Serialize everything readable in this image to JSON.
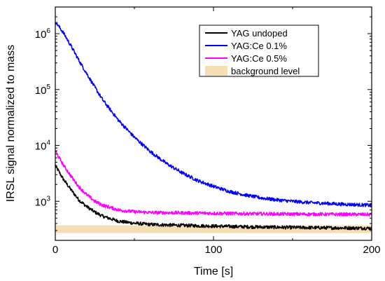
{
  "chart_data": {
    "type": "line",
    "xlabel": "Time [s]",
    "ylabel": "IRSL signal normalized to mass",
    "xlim": [
      0,
      200
    ],
    "ylim": [
      200,
      3000000
    ],
    "y_scale": "log",
    "grid": false,
    "legend_position": "top-right",
    "x_ticks": [
      {
        "value": 0,
        "label": "0"
      },
      {
        "value": 100,
        "label": "100"
      },
      {
        "value": 200,
        "label": "200"
      }
    ],
    "y_ticks": [
      {
        "value": 1000,
        "base": "10",
        "exp": "3"
      },
      {
        "value": 10000,
        "base": "10",
        "exp": "4"
      },
      {
        "value": 100000,
        "base": "10",
        "exp": "5"
      },
      {
        "value": 1000000,
        "base": "10",
        "exp": "6"
      }
    ],
    "series": [
      {
        "name": "YAG undoped",
        "color": "#000000",
        "x": [
          0,
          5,
          10,
          15,
          20,
          25,
          30,
          40,
          50,
          60,
          80,
          100,
          120,
          150,
          200
        ],
        "values": [
          4400,
          2500,
          1600,
          1050,
          800,
          640,
          540,
          440,
          405,
          385,
          370,
          360,
          350,
          340,
          330
        ]
      },
      {
        "name": "YAG:Ce 0.1%",
        "color": "#0000ff",
        "x": [
          0,
          5,
          10,
          15,
          20,
          25,
          30,
          40,
          50,
          60,
          70,
          80,
          90,
          100,
          110,
          120,
          130,
          140,
          150,
          160,
          170,
          180,
          190,
          200
        ],
        "values": [
          1650000,
          1050000,
          600000,
          330000,
          190000,
          110000,
          65000,
          28000,
          14000,
          7800,
          4800,
          3250,
          2350,
          1850,
          1500,
          1300,
          1150,
          1060,
          1000,
          950,
          920,
          890,
          870,
          850
        ]
      },
      {
        "name": "YAG:Ce 0.5%",
        "color": "#ff00ff",
        "x": [
          0,
          5,
          10,
          15,
          20,
          25,
          30,
          40,
          50,
          60,
          80,
          100,
          120,
          150,
          200
        ],
        "values": [
          8000,
          4500,
          2800,
          1800,
          1300,
          1000,
          850,
          700,
          650,
          630,
          620,
          610,
          600,
          590,
          580
        ]
      }
    ],
    "bands": [
      {
        "name": "background level",
        "color": "#f5deb3",
        "y_range": [
          270,
          370
        ]
      }
    ]
  }
}
